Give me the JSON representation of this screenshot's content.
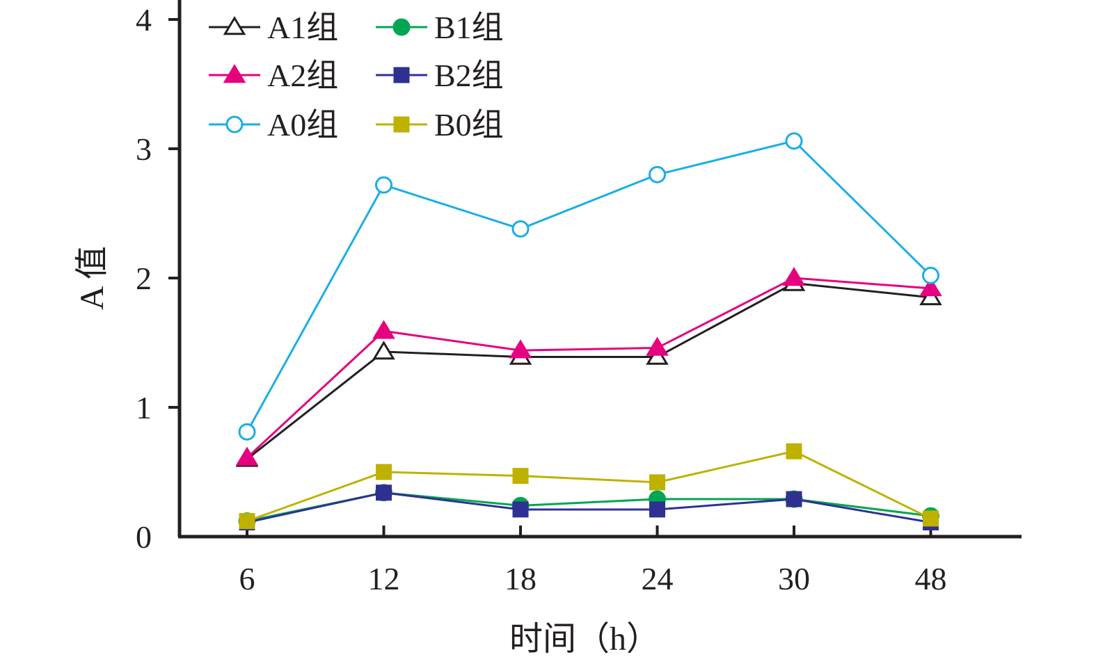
{
  "chart_data": {
    "type": "line",
    "title": "",
    "xlabel": "时间（h）",
    "ylabel": "A 值",
    "categories": [
      "6",
      "12",
      "18",
      "24",
      "30",
      "48"
    ],
    "ylim": [
      0,
      4
    ],
    "yticks": [
      "0",
      "1",
      "2",
      "3",
      "4"
    ],
    "grid": false,
    "legend_position": "top-left",
    "series": [
      {
        "name": "A1组",
        "values": [
          0.6,
          1.43,
          1.39,
          1.39,
          1.96,
          1.85
        ],
        "color": "#231f20",
        "marker": "triangle-open"
      },
      {
        "name": "A2组",
        "values": [
          0.61,
          1.59,
          1.44,
          1.46,
          2.0,
          1.92
        ],
        "color": "#e5007f",
        "marker": "triangle-filled"
      },
      {
        "name": "A0组",
        "values": [
          0.81,
          2.72,
          2.38,
          2.8,
          3.06,
          2.02
        ],
        "color": "#1aaee5",
        "marker": "circle-open"
      },
      {
        "name": "B1组",
        "values": [
          0.12,
          0.34,
          0.24,
          0.29,
          0.29,
          0.16
        ],
        "color": "#00a651",
        "marker": "circle-filled"
      },
      {
        "name": "B2组",
        "values": [
          0.11,
          0.34,
          0.21,
          0.21,
          0.29,
          0.11
        ],
        "color": "#2e3192",
        "marker": "square-filled"
      },
      {
        "name": "B0组",
        "values": [
          0.12,
          0.5,
          0.47,
          0.42,
          0.66,
          0.14
        ],
        "color": "#bfb100",
        "marker": "square-filled"
      }
    ]
  }
}
